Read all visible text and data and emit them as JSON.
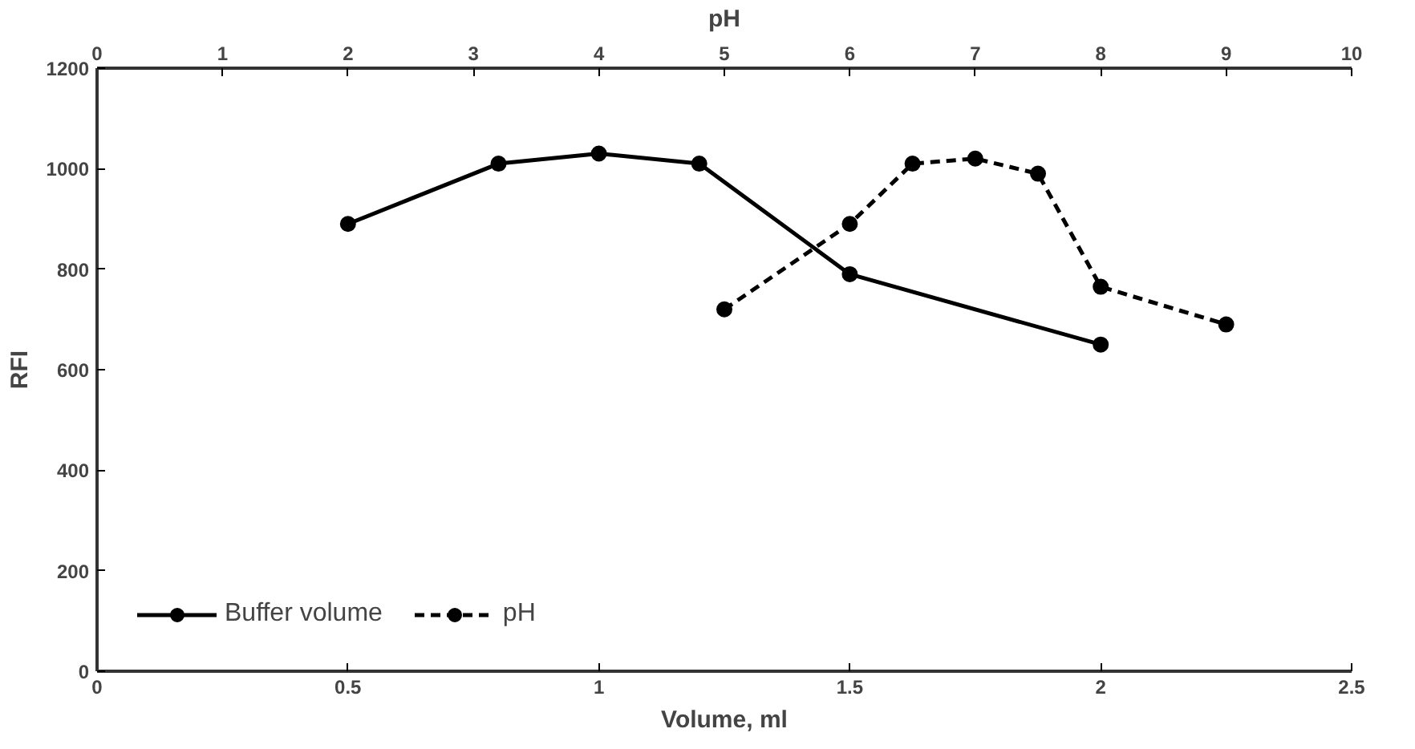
{
  "chart_data": {
    "type": "line",
    "xlabel": "Volume, ml",
    "ylabel": "RFI",
    "x2label": "pH",
    "xlim": [
      0,
      2.5
    ],
    "xticks": [
      0,
      0.5,
      1,
      1.5,
      2,
      2.5
    ],
    "x2lim": [
      0,
      10
    ],
    "x2ticks": [
      0,
      1,
      2,
      3,
      4,
      5,
      6,
      7,
      8,
      9,
      10
    ],
    "ylim": [
      0,
      1200
    ],
    "yticks": [
      0,
      200,
      400,
      600,
      800,
      1000,
      1200
    ],
    "series": [
      {
        "name": "Buffer volume",
        "color": "#000000",
        "line_style": "solid",
        "x": [
          0.5,
          0.8,
          1,
          1.2,
          1.5,
          2
        ],
        "values": [
          890,
          1010,
          1030,
          1010,
          790,
          650
        ]
      },
      {
        "name": "pH",
        "color": "#000000",
        "line_style": "dashed",
        "axis": "x2",
        "x": [
          5,
          6,
          6.5,
          7,
          7.5,
          8,
          9
        ],
        "values": [
          720,
          890,
          1010,
          1020,
          990,
          765,
          690
        ]
      }
    ],
    "marker": "circle",
    "grid": false,
    "legend": "bottom left"
  }
}
